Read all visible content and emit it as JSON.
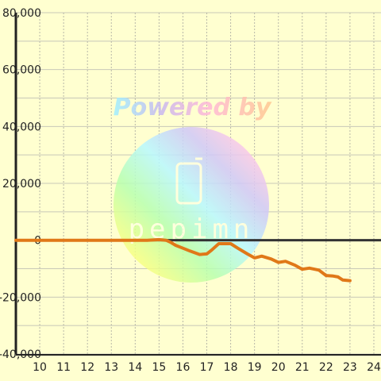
{
  "chart_data": {
    "type": "line",
    "title": "",
    "xlabel": "",
    "ylabel": "",
    "xlim": [
      9,
      24.3
    ],
    "ylim": [
      -40000,
      80000
    ],
    "x_ticks": [
      10,
      11,
      12,
      13,
      14,
      15,
      16,
      17,
      18,
      19,
      20,
      21,
      22,
      23,
      24
    ],
    "y_ticks": [
      -40000,
      -20000,
      0,
      20000,
      40000,
      60000,
      80000
    ],
    "y_tick_labels": [
      "-40,000",
      "-20,000",
      "0",
      "20,000",
      "40,000",
      "60,000",
      "80,000"
    ],
    "grid": true,
    "series": [
      {
        "color": "#e07818",
        "x": [
          9,
          10,
          11,
          12,
          13,
          14,
          14.5,
          15,
          15.3,
          15.5,
          15.7,
          16,
          16.3,
          16.7,
          17,
          17.2,
          17.5,
          18,
          18.3,
          18.7,
          19,
          19.3,
          19.7,
          20,
          20.3,
          20.7,
          21,
          21.3,
          21.7,
          22,
          22.3,
          22.5,
          22.7,
          23
        ],
        "y": [
          0,
          0,
          0,
          0,
          0,
          0,
          0,
          200,
          0,
          -800,
          -1800,
          -2800,
          -3800,
          -5000,
          -4800,
          -3500,
          -1200,
          -1200,
          -2800,
          -4800,
          -6200,
          -5600,
          -6600,
          -7800,
          -7400,
          -8800,
          -10200,
          -9800,
          -10500,
          -12400,
          -12600,
          -12900,
          -14000,
          -14200
        ]
      }
    ]
  },
  "watermark": {
    "text": "Powered by",
    "logo_text": "pepimn"
  }
}
